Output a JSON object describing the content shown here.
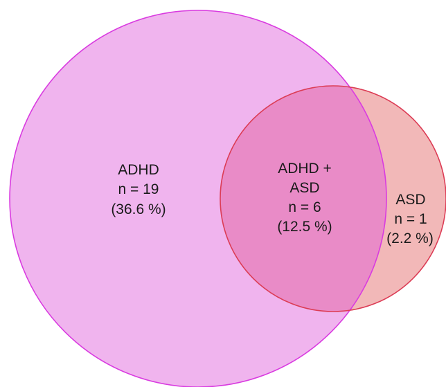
{
  "sets": {
    "adhd": {
      "name": "ADHD",
      "n": "n = 19",
      "pct": "(36.6 %)",
      "fill": "#f0b4ee",
      "stroke": "#d93be0"
    },
    "asd": {
      "name": "ASD",
      "n": "n = 1",
      "pct": "(2.2 %)",
      "fill": "#f2b8b8",
      "stroke": "#dc3c55"
    }
  },
  "overlap": {
    "name_line1": "ADHD +",
    "name_line2": "ASD",
    "n": "n = 6",
    "pct": "(12.5 %)",
    "fill": "#e98bc7"
  }
}
